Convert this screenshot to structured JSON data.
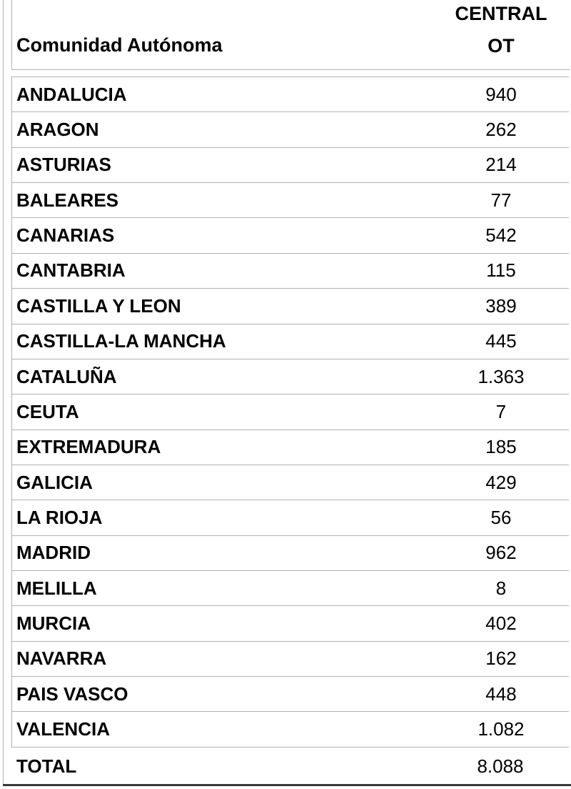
{
  "table": {
    "header": {
      "col1": "Comunidad Autónoma",
      "col2_line1": "CENTRAL",
      "col2_line2": "OT"
    },
    "rows": [
      {
        "region": "ANDALUCIA",
        "value": "940"
      },
      {
        "region": "ARAGON",
        "value": "262"
      },
      {
        "region": "ASTURIAS",
        "value": "214"
      },
      {
        "region": "BALEARES",
        "value": "77"
      },
      {
        "region": "CANARIAS",
        "value": "542"
      },
      {
        "region": "CANTABRIA",
        "value": "115"
      },
      {
        "region": "CASTILLA Y LEON",
        "value": "389"
      },
      {
        "region": "CASTILLA-LA MANCHA",
        "value": "445"
      },
      {
        "region": "CATALUÑA",
        "value": "1.363"
      },
      {
        "region": "CEUTA",
        "value": "7"
      },
      {
        "region": "EXTREMADURA",
        "value": "185"
      },
      {
        "region": "GALICIA",
        "value": "429"
      },
      {
        "region": "LA RIOJA",
        "value": "56"
      },
      {
        "region": "MADRID",
        "value": "962"
      },
      {
        "region": "MELILLA",
        "value": "8"
      },
      {
        "region": "MURCIA",
        "value": "402"
      },
      {
        "region": "NAVARRA",
        "value": "162"
      },
      {
        "region": "PAIS VASCO",
        "value": "448"
      },
      {
        "region": "VALENCIA",
        "value": "1.082"
      }
    ],
    "total": {
      "label": "TOTAL",
      "value": "8.088"
    }
  },
  "colors": {
    "background": "#ffffff",
    "text": "#000000",
    "border_light": "#b2b2b2",
    "border_dark": "#3a3a3a"
  }
}
